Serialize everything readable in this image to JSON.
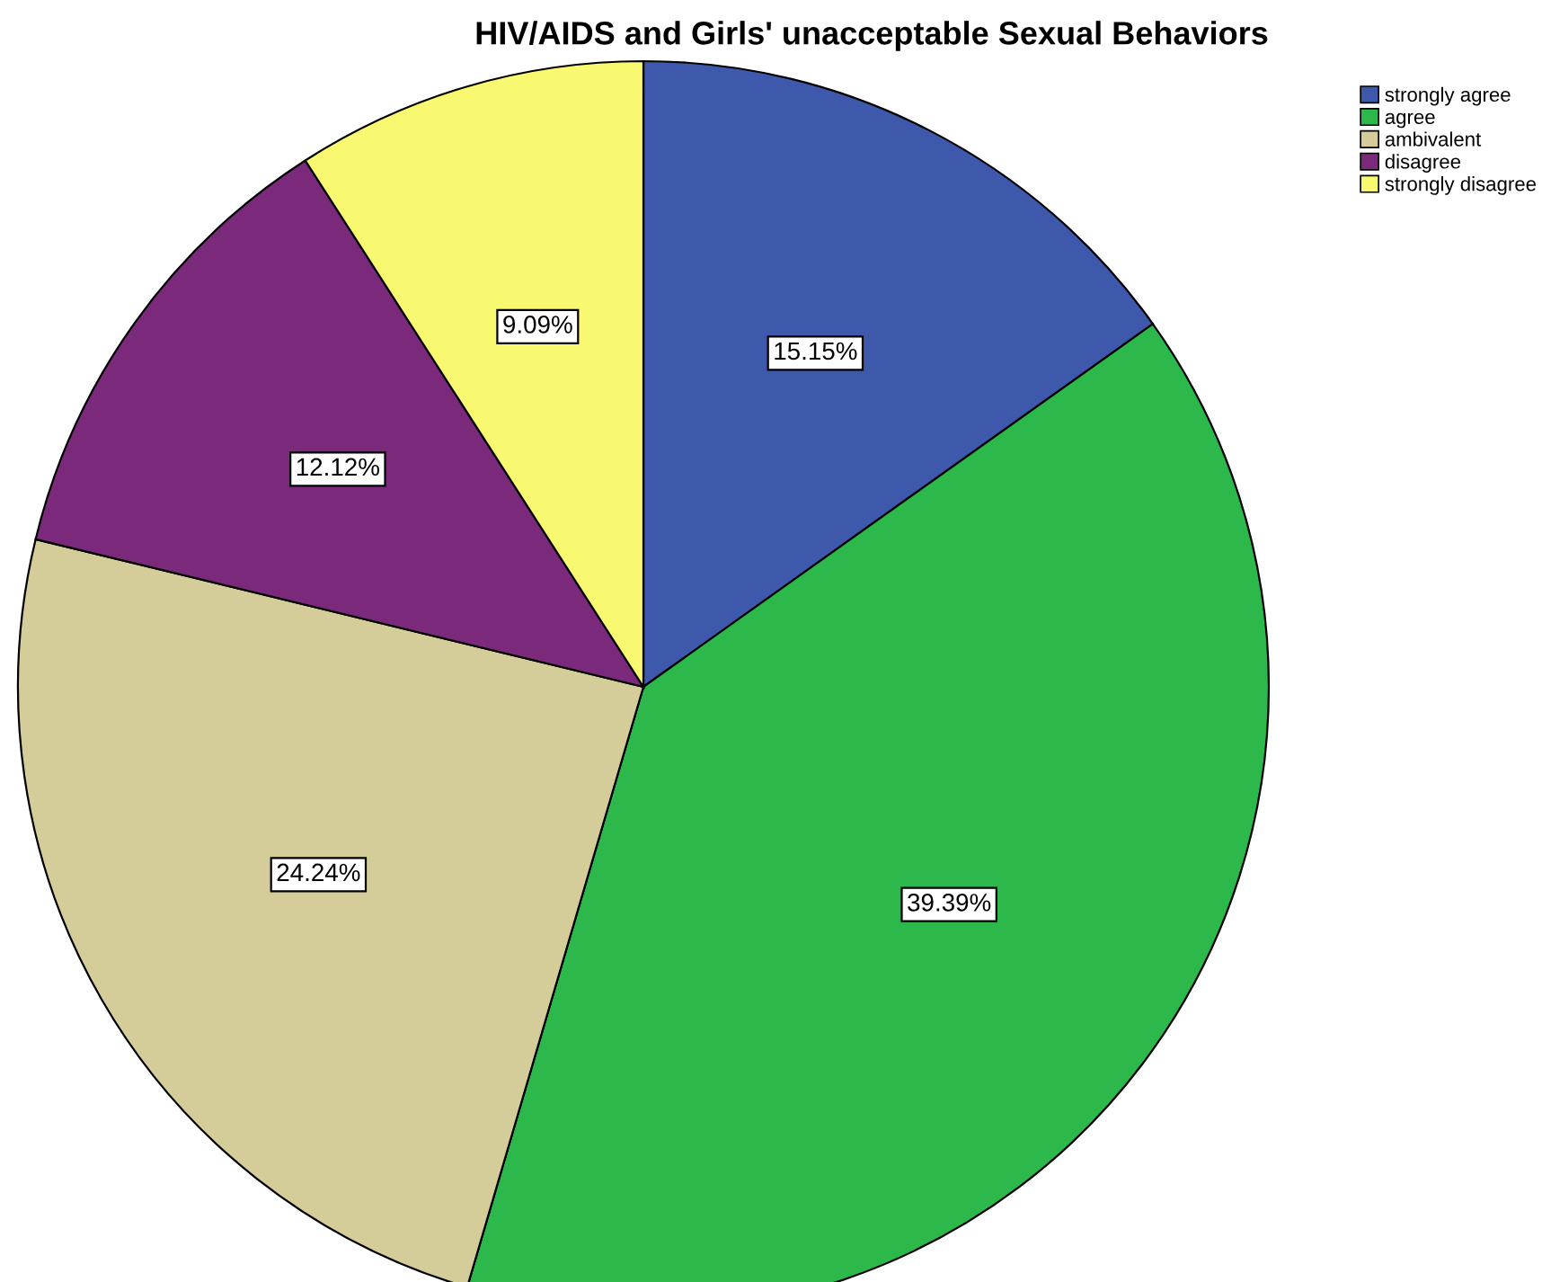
{
  "chart_data": {
    "type": "pie",
    "title": "HIV/AIDS and Girls' unacceptable Sexual Behaviors",
    "categories": [
      "strongly agree",
      "agree",
      "ambivalent",
      "disagree",
      "strongly disagree"
    ],
    "values": [
      15.15,
      39.39,
      24.24,
      12.12,
      9.09
    ],
    "colors": [
      "#3e58ac",
      "#2db84c",
      "#d4cc99",
      "#7b2a7b",
      "#f9f871"
    ],
    "value_labels": [
      "15.15%",
      "39.39%",
      "24.24%",
      "12.12%",
      "9.09%"
    ],
    "legend": "top right"
  }
}
